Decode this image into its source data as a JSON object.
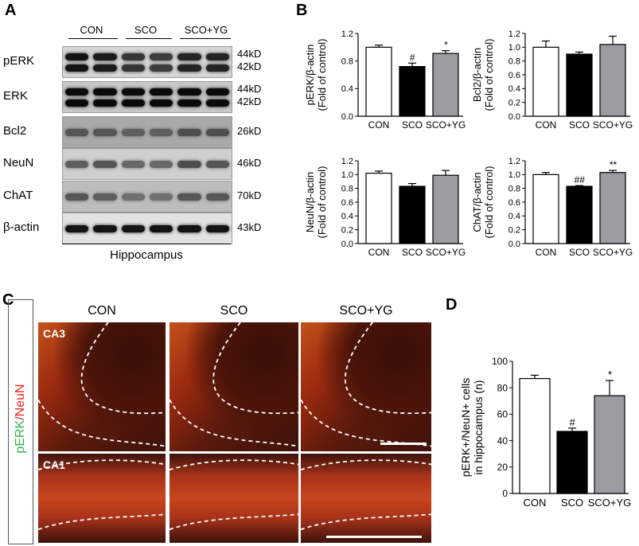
{
  "panels": {
    "A": "A",
    "B": "B",
    "C": "C",
    "D": "D"
  },
  "blot": {
    "groups": [
      "CON",
      "SCO",
      "SCO+YG"
    ],
    "rows": [
      {
        "label": "pERK",
        "kd": [
          "44kD",
          "42kD"
        ],
        "bg": "#d6d6d6",
        "bands": 2,
        "intensity": [
          0.95,
          0.9,
          0.75,
          0.7,
          0.85,
          0.85
        ]
      },
      {
        "label": "ERK",
        "kd": [
          "44kD",
          "42kD"
        ],
        "bg": "#c8c8c8",
        "bands": 2,
        "intensity": [
          1,
          1,
          1,
          1,
          1,
          1
        ]
      },
      {
        "label": "Bcl2",
        "kd": [
          "26kD"
        ],
        "bg": "#a9a9a9",
        "bands": 1,
        "intensity": [
          0.55,
          0.55,
          0.5,
          0.5,
          0.6,
          0.6
        ]
      },
      {
        "label": "NeuN",
        "kd": [
          "46kD"
        ],
        "bg": "#cfcfcf",
        "bands": 1,
        "intensity": [
          0.5,
          0.55,
          0.45,
          0.45,
          0.6,
          0.55
        ]
      },
      {
        "label": "ChAT",
        "kd": [
          "70kD"
        ],
        "bg": "#bdbdbd",
        "bands": 1,
        "intensity": [
          0.55,
          0.5,
          0.4,
          0.4,
          0.55,
          0.55
        ]
      },
      {
        "label": "β-actin",
        "kd": [
          "43kD"
        ],
        "bg": "#e2e2e2",
        "bands": 1,
        "intensity": [
          0.95,
          0.95,
          0.95,
          0.95,
          0.95,
          0.95
        ]
      }
    ],
    "tissue": "Hippocampus"
  },
  "chart_data": [
    {
      "type": "bar",
      "id": "perk",
      "categories": [
        "CON",
        "SCO",
        "SCO+YG"
      ],
      "values": [
        1.0,
        0.72,
        0.91
      ],
      "errors": [
        0.03,
        0.05,
        0.04
      ],
      "ylabel": [
        "pERK/β-actin",
        "(Fold of control)"
      ],
      "ylim": [
        0,
        1.2
      ],
      "yticks": [
        "0.0",
        "0.4",
        "0.8",
        "1.2"
      ],
      "annotations": [
        "",
        "#",
        "*"
      ],
      "colors": [
        "#ffffff",
        "#000000",
        "#9b9ba0"
      ]
    },
    {
      "type": "bar",
      "id": "bcl2",
      "categories": [
        "CON",
        "SCO",
        "SCO+YG"
      ],
      "values": [
        1.0,
        0.9,
        1.04
      ],
      "errors": [
        0.09,
        0.03,
        0.12
      ],
      "ylabel": [
        "Bcl2/β-actin",
        "(Fold of control)"
      ],
      "ylim": [
        0,
        1.2
      ],
      "yticks": [
        "0.0",
        "0.2",
        "0.4",
        "0.6",
        "0.8",
        "1.0",
        "1.2"
      ],
      "annotations": [
        "",
        "",
        ""
      ],
      "colors": [
        "#ffffff",
        "#000000",
        "#9b9ba0"
      ]
    },
    {
      "type": "bar",
      "id": "neun",
      "categories": [
        "CON",
        "SCO",
        "SCO+YG"
      ],
      "values": [
        1.02,
        0.83,
        0.99
      ],
      "errors": [
        0.03,
        0.04,
        0.07
      ],
      "ylabel": [
        "NeuN/β-actin",
        "(Fold of control)"
      ],
      "ylim": [
        0,
        1.2
      ],
      "yticks": [
        "0.0",
        "0.2",
        "0.4",
        "0.6",
        "0.8",
        "1.0",
        "1.2"
      ],
      "annotations": [
        "",
        "",
        ""
      ],
      "colors": [
        "#ffffff",
        "#000000",
        "#9b9ba0"
      ]
    },
    {
      "type": "bar",
      "id": "chat",
      "categories": [
        "CON",
        "SCO",
        "SCO+YG"
      ],
      "values": [
        1.0,
        0.83,
        1.03
      ],
      "errors": [
        0.03,
        0.01,
        0.03
      ],
      "ylabel": [
        "ChAT/β-actin",
        "(Fold of control)"
      ],
      "ylim": [
        0,
        1.2
      ],
      "yticks": [
        "0.0",
        "0.2",
        "0.4",
        "0.6",
        "0.8",
        "1.0",
        "1.2"
      ],
      "annotations": [
        "",
        "##",
        "**"
      ],
      "colors": [
        "#ffffff",
        "#000000",
        "#9b9ba0"
      ]
    },
    {
      "type": "bar",
      "id": "cells",
      "categories": [
        "CON",
        "SCO",
        "SCO+YG"
      ],
      "values": [
        87,
        47,
        74
      ],
      "errors": [
        2.5,
        2.5,
        11.5
      ],
      "ylabel": [
        "pERK+/NeuN+ cells",
        "in hippocampus (n)"
      ],
      "ylim": [
        0,
        100
      ],
      "yticks": [
        "0",
        "20",
        "40",
        "60",
        "80",
        "100"
      ],
      "annotations": [
        "",
        "#",
        "*"
      ],
      "colors": [
        "#ffffff",
        "#000000",
        "#9b9ba0"
      ]
    }
  ],
  "micro": {
    "columns": [
      "CON",
      "SCO",
      "SCO+YG"
    ],
    "rows": [
      "CA3",
      "CA1"
    ],
    "stain_label": {
      "green": "pERK",
      "sep": "/",
      "red": "NeuN"
    },
    "stain_colors": {
      "green": "#2db34a",
      "red": "#e8221c"
    }
  }
}
